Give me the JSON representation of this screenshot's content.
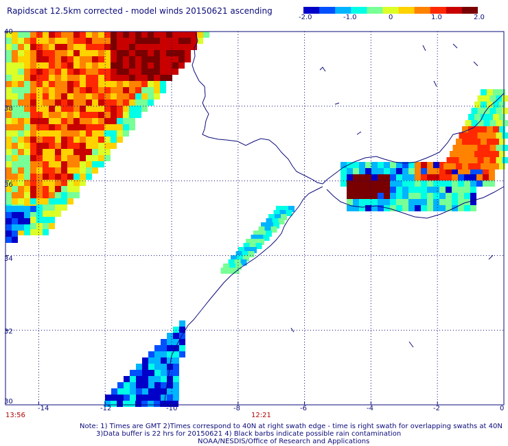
{
  "title": "Rapidscat 12.5km corrected - model winds 20150621 ascending",
  "colorbar": {
    "ticks": [
      "-2.0",
      "-1.0",
      "0",
      "1.0",
      "2.0"
    ],
    "min": -2.0,
    "max": 2.0,
    "colors": [
      "#0000c8",
      "#0050ff",
      "#00b4ff",
      "#00ffe6",
      "#78ff96",
      "#dcff28",
      "#ffd200",
      "#ff8200",
      "#ff2800",
      "#c80000",
      "#780000"
    ]
  },
  "map": {
    "lon_range": [
      -15,
      0
    ],
    "lat_range": [
      30,
      40
    ],
    "lon_ticks": [
      "-14",
      "-12",
      "-10",
      "-8",
      "-6",
      "-4",
      "-2",
      "0"
    ],
    "lat_ticks": [
      "40",
      "38",
      "36",
      "34",
      "32",
      "30"
    ],
    "coast_color": "#0a0a7a",
    "grid_color": "#0a0a7a"
  },
  "times": {
    "left": "13:56",
    "center": "12:21"
  },
  "notes": [
    "Note: 1) Times are GMT 2)Times correspond to 40N at right swath edge - time is right swath for overlapping swaths at 40N",
    "3)Data buffer is 22 hrs for 20150621 4) Black barbs indicate possible rain contamination",
    "NOAA/NESDIS/Office of Research and Applications"
  ]
}
